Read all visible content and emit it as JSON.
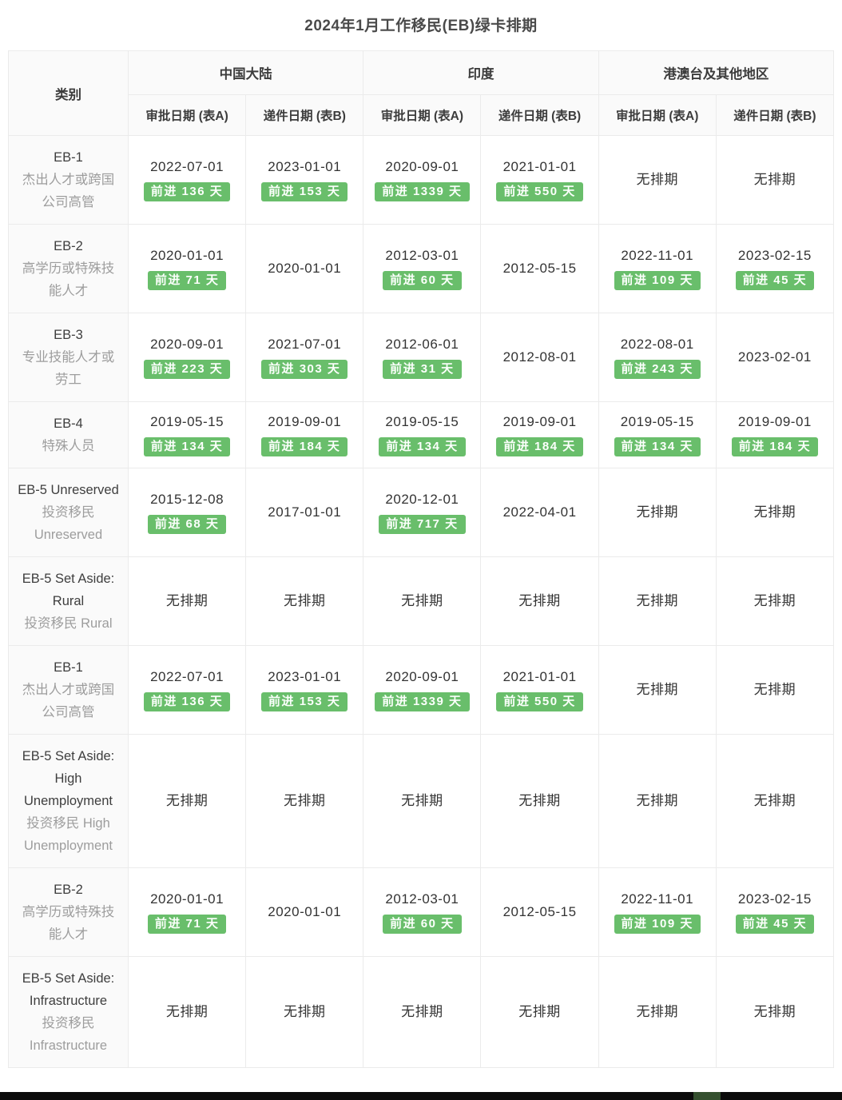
{
  "title": "2024年1月工作移民(EB)绿卡排期",
  "colors": {
    "advance_badge_green": "#69be6b",
    "header_background": "#fafafa",
    "border": "#ebebeb"
  },
  "table": {
    "category_header": "类别",
    "region_groups": [
      "中国大陆",
      "印度",
      "港澳台及其他地区"
    ],
    "sub_headers": [
      "审批日期 (表A)",
      "递件日期 (表B)"
    ],
    "no_backlog_label": "无排期",
    "rows": [
      {
        "category": "EB-1",
        "subtitle": "杰出人才或跨国公司高管",
        "cells": [
          {
            "value": "2022-07-01",
            "advance": "前进 136 天"
          },
          {
            "value": "2023-01-01",
            "advance": "前进 153 天"
          },
          {
            "value": "2020-09-01",
            "advance": "前进 1339 天"
          },
          {
            "value": "2021-01-01",
            "advance": "前进 550 天"
          },
          {
            "value": "无排期"
          },
          {
            "value": "无排期"
          }
        ]
      },
      {
        "category": "EB-2",
        "subtitle": "高学历或特殊技能人才",
        "cells": [
          {
            "value": "2020-01-01",
            "advance": "前进 71 天"
          },
          {
            "value": "2020-01-01"
          },
          {
            "value": "2012-03-01",
            "advance": "前进 60 天"
          },
          {
            "value": "2012-05-15"
          },
          {
            "value": "2022-11-01",
            "advance": "前进 109 天"
          },
          {
            "value": "2023-02-15",
            "advance": "前进 45 天"
          }
        ]
      },
      {
        "category": "EB-3",
        "subtitle": "专业技能人才或劳工",
        "cells": [
          {
            "value": "2020-09-01",
            "advance": "前进 223 天"
          },
          {
            "value": "2021-07-01",
            "advance": "前进 303 天"
          },
          {
            "value": "2012-06-01",
            "advance": "前进 31 天"
          },
          {
            "value": "2012-08-01"
          },
          {
            "value": "2022-08-01",
            "advance": "前进 243 天"
          },
          {
            "value": "2023-02-01"
          }
        ]
      },
      {
        "category": "EB-4",
        "subtitle": "特殊人员",
        "cells": [
          {
            "value": "2019-05-15",
            "advance": "前进 134 天"
          },
          {
            "value": "2019-09-01",
            "advance": "前进 184 天"
          },
          {
            "value": "2019-05-15",
            "advance": "前进 134 天"
          },
          {
            "value": "2019-09-01",
            "advance": "前进 184 天"
          },
          {
            "value": "2019-05-15",
            "advance": "前进 134 天"
          },
          {
            "value": "2019-09-01",
            "advance": "前进 184 天"
          }
        ]
      },
      {
        "category": "EB-5 Unreserved",
        "subtitle": "投资移民 Unreserved",
        "cells": [
          {
            "value": "2015-12-08",
            "advance": "前进 68 天"
          },
          {
            "value": "2017-01-01"
          },
          {
            "value": "2020-12-01",
            "advance": "前进 717 天"
          },
          {
            "value": "2022-04-01"
          },
          {
            "value": "无排期"
          },
          {
            "value": "无排期"
          }
        ]
      },
      {
        "category": "EB-5 Set Aside: Rural",
        "subtitle": "投资移民 Rural",
        "cells": [
          {
            "value": "无排期"
          },
          {
            "value": "无排期"
          },
          {
            "value": "无排期"
          },
          {
            "value": "无排期"
          },
          {
            "value": "无排期"
          },
          {
            "value": "无排期"
          }
        ]
      },
      {
        "category": "EB-1",
        "subtitle": "杰出人才或跨国公司高管",
        "cells": [
          {
            "value": "2022-07-01",
            "advance": "前进 136 天"
          },
          {
            "value": "2023-01-01",
            "advance": "前进 153 天"
          },
          {
            "value": "2020-09-01",
            "advance": "前进 1339 天"
          },
          {
            "value": "2021-01-01",
            "advance": "前进 550 天"
          },
          {
            "value": "无排期"
          },
          {
            "value": "无排期"
          }
        ]
      },
      {
        "category": "EB-5 Set Aside: High Unemployment",
        "subtitle": "投资移民 High Unemployment",
        "cells": [
          {
            "value": "无排期"
          },
          {
            "value": "无排期"
          },
          {
            "value": "无排期"
          },
          {
            "value": "无排期"
          },
          {
            "value": "无排期"
          },
          {
            "value": "无排期"
          }
        ]
      },
      {
        "category": "EB-2",
        "subtitle": "高学历或特殊技能人才",
        "cells": [
          {
            "value": "2020-01-01",
            "advance": "前进 71 天"
          },
          {
            "value": "2020-01-01"
          },
          {
            "value": "2012-03-01",
            "advance": "前进 60 天"
          },
          {
            "value": "2012-05-15"
          },
          {
            "value": "2022-11-01",
            "advance": "前进 109 天"
          },
          {
            "value": "2023-02-15",
            "advance": "前进 45 天"
          }
        ]
      },
      {
        "category": "EB-5 Set Aside: Infrastructure",
        "subtitle": "投资移民 Infrastructure",
        "cells": [
          {
            "value": "无排期"
          },
          {
            "value": "无排期"
          },
          {
            "value": "无排期"
          },
          {
            "value": "无排期"
          },
          {
            "value": "无排期"
          },
          {
            "value": "无排期"
          }
        ]
      }
    ]
  }
}
